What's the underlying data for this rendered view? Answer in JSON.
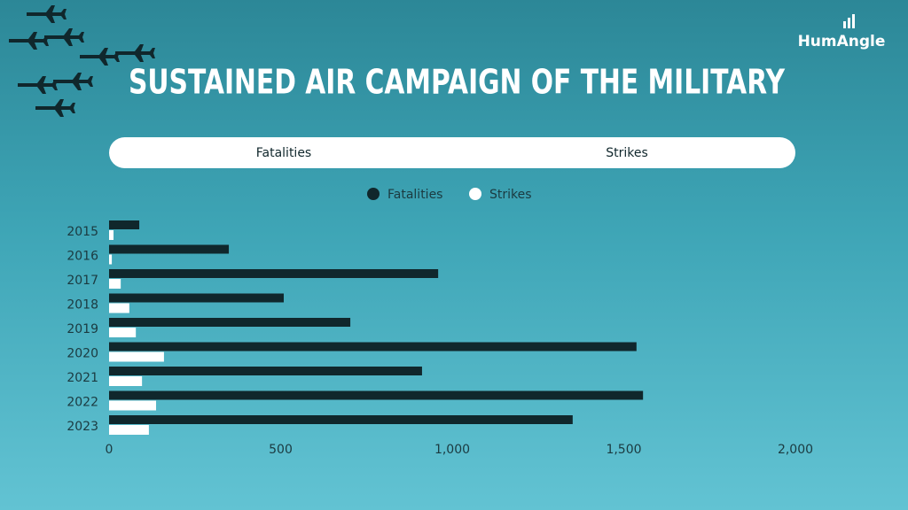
{
  "brand": "HumAngle",
  "tabs": [
    "Fatalities",
    "Strikes"
  ],
  "chart_data": {
    "type": "bar",
    "orientation": "horizontal",
    "title": "SUSTAINED AIR CAMPAIGN OF THE MILITARY",
    "categories": [
      "2015",
      "2016",
      "2017",
      "2018",
      "2019",
      "2020",
      "2021",
      "2022",
      "2023"
    ],
    "series": [
      {
        "name": "Fatalities",
        "color": "#10272c",
        "values": [
          88,
          349,
          959,
          509,
          703,
          1537,
          912,
          1556,
          1351
        ]
      },
      {
        "name": "Strikes",
        "color": "#ffffff",
        "values": [
          13,
          8,
          34,
          59,
          78,
          160,
          96,
          137,
          116
        ]
      }
    ],
    "xlim": [
      0,
      2000
    ],
    "xticks": [
      0,
      500,
      {
        "value": 1000,
        "label": "1,000"
      },
      {
        "value": 1500,
        "label": "1,500"
      },
      {
        "value": 2000,
        "label": "2,000"
      }
    ],
    "legend": "top",
    "grid": false
  }
}
